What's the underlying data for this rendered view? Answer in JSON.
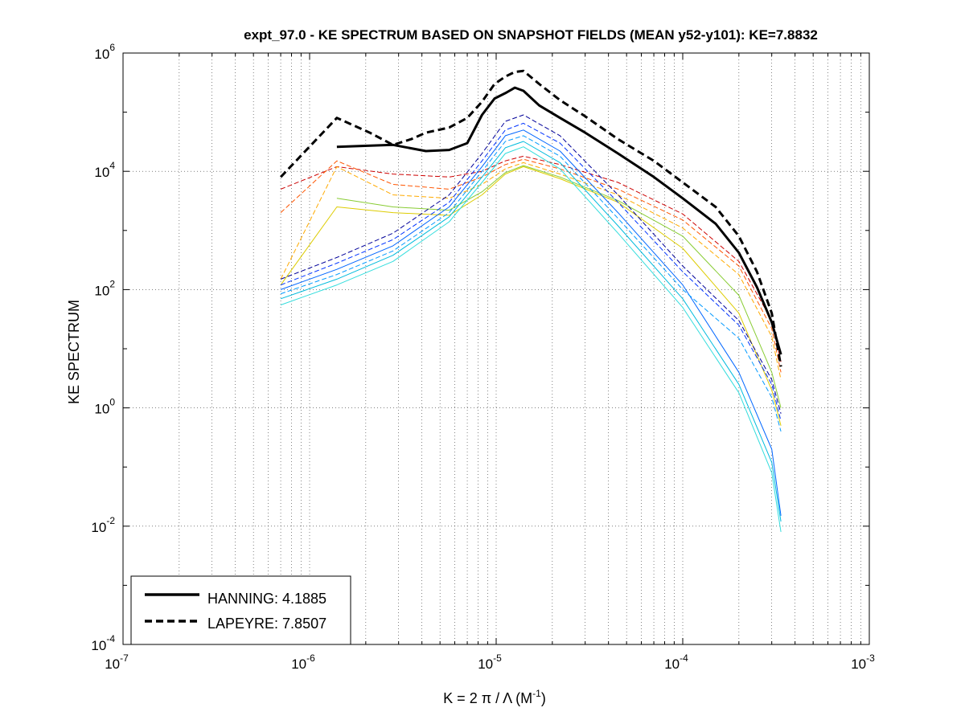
{
  "chart_data": {
    "type": "line",
    "title": "expt_97.0 - KE SPECTRUM BASED ON SNAPSHOT FIELDS (MEAN y52-y101): KE=7.8832",
    "xlabel": "K = 2 π / Λ  (M",
    "xlabel_sup": "-1",
    "xlabel_close": ")",
    "ylabel": "KE SPECTRUM",
    "xscale": "log",
    "yscale": "log",
    "xlim": [
      1e-07,
      0.001
    ],
    "ylim": [
      0.0001,
      1000000.0
    ],
    "xticks": [
      {
        "base": "10",
        "exp": "-7"
      },
      {
        "base": "10",
        "exp": "-6"
      },
      {
        "base": "10",
        "exp": "-5"
      },
      {
        "base": "10",
        "exp": "-4"
      },
      {
        "base": "10",
        "exp": "-3"
      }
    ],
    "yticks": [
      {
        "base": "10",
        "exp": "-4"
      },
      {
        "base": "10",
        "exp": "-2"
      },
      {
        "base": "10",
        "exp": "0"
      },
      {
        "base": "10",
        "exp": "2"
      },
      {
        "base": "10",
        "exp": "4"
      },
      {
        "base": "10",
        "exp": "6"
      }
    ],
    "grid": true,
    "legend_position": "bottom-left",
    "legend": [
      {
        "label": "HANNING: 4.1885",
        "style": "solid",
        "color": "#000000"
      },
      {
        "label": "LAPEYRE: 7.8507",
        "style": "dashed",
        "color": "#000000"
      }
    ],
    "series": [
      {
        "name": "HANNING: 4.1885",
        "style": "solid",
        "color": "#000000",
        "width": 3,
        "x": [
          1.4e-06,
          2.8e-06,
          4.2e-06,
          5.6e-06,
          7e-06,
          8.4e-06,
          9.8e-06,
          1.12e-05,
          1.26e-05,
          1.4e-05,
          1.7e-05,
          2.2e-05,
          3e-05,
          4.5e-05,
          7e-05,
          0.0001,
          0.00015,
          0.0002,
          0.00025,
          0.0003,
          0.000336
        ],
        "y": [
          26000,
          28000,
          22000,
          23000,
          30000,
          90000,
          170000,
          210000,
          260000,
          230000,
          130000,
          80000,
          45000,
          20000,
          8000,
          3500,
          1300,
          420,
          110,
          28,
          8
        ]
      },
      {
        "name": "LAPEYRE: 7.8507",
        "style": "dashed",
        "color": "#000000",
        "width": 3,
        "x": [
          7e-07,
          1.4e-06,
          2.1e-06,
          2.8e-06,
          3.5e-06,
          4.2e-06,
          5.6e-06,
          7e-06,
          8.4e-06,
          9.8e-06,
          1.12e-05,
          1.26e-05,
          1.4e-05,
          1.7e-05,
          2.2e-05,
          3e-05,
          4.5e-05,
          7e-05,
          0.0001,
          0.00015,
          0.0002,
          0.00025,
          0.0003,
          0.000336
        ],
        "y": [
          8000,
          80000,
          45000,
          28000,
          35000,
          45000,
          55000,
          80000,
          150000,
          300000,
          400000,
          480000,
          500000,
          300000,
          160000,
          85000,
          35000,
          15000,
          6500,
          2500,
          800,
          200,
          40,
          5
        ]
      },
      {
        "name": "",
        "style": "dashed",
        "color": "#cc0000",
        "width": 1,
        "x": [
          7e-07,
          1.4e-06,
          2.8e-06,
          5.6e-06,
          8.4e-06,
          1.12e-05,
          1.4e-05,
          2.2e-05,
          4.5e-05,
          0.0001,
          0.0002,
          0.0003,
          0.000336
        ],
        "y": [
          5000,
          12000,
          9000,
          8000,
          10000,
          15000,
          18000,
          13000,
          6500,
          1900,
          300,
          30,
          6
        ]
      },
      {
        "name": "",
        "style": "dashed",
        "color": "#ff5500",
        "width": 1,
        "x": [
          7e-07,
          1.4e-06,
          2.8e-06,
          5.6e-06,
          8.4e-06,
          1.12e-05,
          1.4e-05,
          2.2e-05,
          4.5e-05,
          0.0001,
          0.0002,
          0.0003,
          0.000336
        ],
        "y": [
          2000,
          15000,
          6000,
          5000,
          8000,
          13000,
          16000,
          11000,
          5000,
          1500,
          250,
          22,
          4
        ]
      },
      {
        "name": "",
        "style": "dashed",
        "color": "#ffaa00",
        "width": 1,
        "x": [
          7e-07,
          1.4e-06,
          2.8e-06,
          5.6e-06,
          8.4e-06,
          1.12e-05,
          1.4e-05,
          2.2e-05,
          4.5e-05,
          0.0001,
          0.0002,
          0.0003,
          0.000336
        ],
        "y": [
          150,
          12000,
          4000,
          3500,
          6000,
          11000,
          14000,
          9000,
          4000,
          1100,
          180,
          16,
          3
        ]
      },
      {
        "name": "",
        "style": "solid",
        "color": "#ddcc00",
        "width": 1,
        "x": [
          7e-07,
          1.4e-06,
          2.8e-06,
          5.6e-06,
          8.4e-06,
          1.12e-05,
          1.4e-05,
          2.2e-05,
          4.5e-05,
          0.0001,
          0.0002,
          0.0003,
          0.000336
        ],
        "y": [
          120,
          2500,
          2000,
          1800,
          4000,
          9000,
          12000,
          7500,
          3000,
          500,
          40,
          2,
          0.5
        ]
      },
      {
        "name": "",
        "style": "solid",
        "color": "#88cc33",
        "width": 1,
        "x": [
          1.4e-06,
          2.8e-06,
          5.6e-06,
          8.4e-06,
          1.12e-05,
          1.4e-05,
          2.2e-05,
          4.5e-05,
          0.0001,
          0.0002,
          0.0003,
          0.000336
        ],
        "y": [
          3500,
          2500,
          2200,
          4500,
          9500,
          12500,
          8000,
          3200,
          800,
          80,
          4,
          1
        ]
      },
      {
        "name": "",
        "style": "dashed",
        "color": "#000099",
        "width": 1,
        "x": [
          7e-07,
          1.4e-06,
          2.8e-06,
          5.6e-06,
          8.4e-06,
          1.12e-05,
          1.4e-05,
          2.2e-05,
          4.5e-05,
          0.0001,
          0.0002,
          0.0003,
          0.000336
        ],
        "y": [
          150,
          350,
          900,
          4000,
          20000,
          70000,
          90000,
          40000,
          4000,
          250,
          30,
          3,
          0.8
        ]
      },
      {
        "name": "",
        "style": "dashed",
        "color": "#0033ff",
        "width": 1,
        "x": [
          7e-07,
          1.4e-06,
          2.8e-06,
          5.6e-06,
          8.4e-06,
          1.12e-05,
          1.4e-05,
          2.2e-05,
          4.5e-05,
          0.0001,
          0.0002,
          0.0003,
          0.000336
        ],
        "y": [
          120,
          280,
          700,
          3000,
          15000,
          50000,
          65000,
          30000,
          3000,
          200,
          25,
          2.5,
          0.6
        ]
      },
      {
        "name": "",
        "style": "solid",
        "color": "#0066ff",
        "width": 1,
        "x": [
          7e-07,
          1.4e-06,
          2.8e-06,
          5.6e-06,
          8.4e-06,
          1.12e-05,
          1.4e-05,
          2.2e-05,
          4.5e-05,
          0.0001,
          0.0002,
          0.0003,
          0.000336
        ],
        "y": [
          100,
          220,
          550,
          2500,
          12000,
          40000,
          50000,
          22000,
          2000,
          120,
          4,
          0.2,
          0.015
        ]
      },
      {
        "name": "",
        "style": "dashed",
        "color": "#0099ff",
        "width": 1,
        "x": [
          7e-07,
          1.4e-06,
          2.8e-06,
          5.6e-06,
          8.4e-06,
          1.12e-05,
          1.4e-05,
          2.2e-05,
          4.5e-05,
          0.0001,
          0.0002,
          0.0003,
          0.000336
        ],
        "y": [
          85,
          180,
          450,
          2000,
          10000,
          32000,
          40000,
          18000,
          1600,
          100,
          15,
          1.5,
          0.4
        ]
      },
      {
        "name": "",
        "style": "solid",
        "color": "#00bbdd",
        "width": 1,
        "x": [
          7e-07,
          1.4e-06,
          2.8e-06,
          5.6e-06,
          8.4e-06,
          1.12e-05,
          1.4e-05,
          2.2e-05,
          4.5e-05,
          0.0001,
          0.0002,
          0.0003,
          0.000336
        ],
        "y": [
          70,
          150,
          380,
          1700,
          8000,
          25000,
          32000,
          14000,
          1200,
          70,
          2.5,
          0.12,
          0.012
        ]
      },
      {
        "name": "",
        "style": "solid",
        "color": "#33dddd",
        "width": 1,
        "x": [
          7e-07,
          1.4e-06,
          2.8e-06,
          5.6e-06,
          8.4e-06,
          1.12e-05,
          1.4e-05,
          2.2e-05,
          4.5e-05,
          0.0001,
          0.0002,
          0.0003,
          0.000336
        ],
        "y": [
          55,
          120,
          300,
          1400,
          6500,
          20000,
          26000,
          11000,
          900,
          50,
          1.8,
          0.08,
          0.008
        ]
      }
    ]
  }
}
